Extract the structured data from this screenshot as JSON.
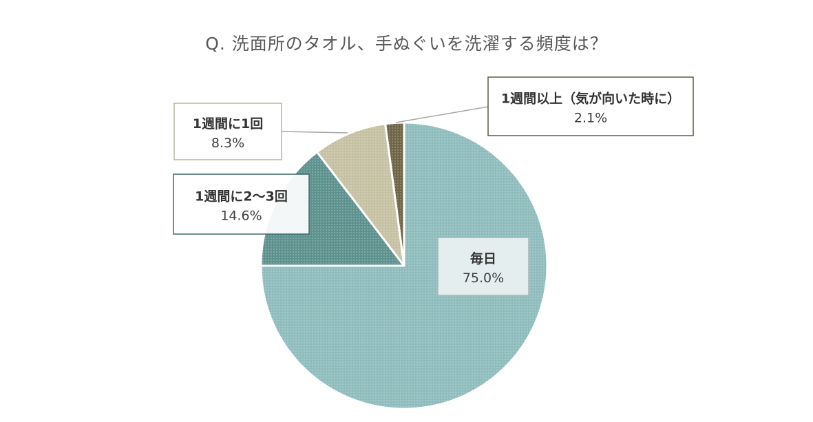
{
  "chart_data": {
    "type": "pie",
    "title": "Q.  洗面所のタオル、手ぬぐいを洗濯する頻度は？",
    "slices": [
      {
        "label": "毎日",
        "value": 75.0,
        "value_text": "75.0%",
        "color": "#8fbcbd"
      },
      {
        "label": "1週間に2～3回",
        "value": 14.6,
        "value_text": "14.6%",
        "color": "#5e928e"
      },
      {
        "label": "1週間に1回",
        "value": 8.3,
        "value_text": "8.3%",
        "color": "#c6c1a3"
      },
      {
        "label": "1週間以上（気が向いた時に）",
        "value": 2.1,
        "value_text": "2.1%",
        "color": "#6f6548"
      }
    ],
    "start_angle": "12 o'clock",
    "direction": "clockwise"
  },
  "label_styles": [
    {
      "border": "#a7b9b8",
      "fill": "#e4eeee"
    },
    {
      "border": "#3a6b68",
      "fill": "#ffffff"
    },
    {
      "border": "#b9b59c",
      "fill": "#ffffff"
    },
    {
      "border": "#5f5a3f",
      "fill": "#ffffff"
    }
  ]
}
